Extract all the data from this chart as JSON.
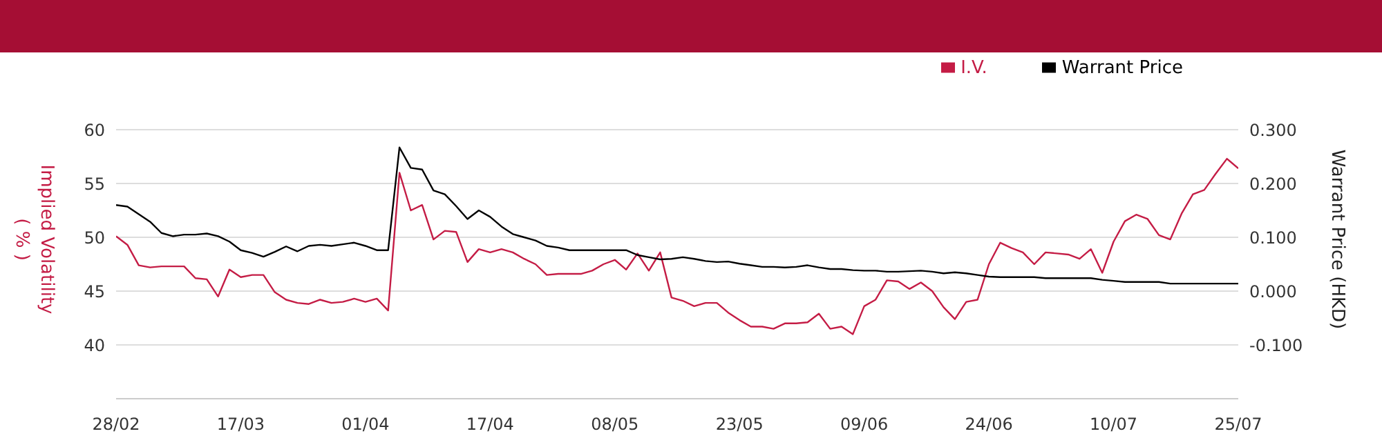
{
  "chart_data": {
    "type": "line",
    "ylabel": "Implied Volatility ( % )",
    "y2label": "Warrant Price (HKD)",
    "categories": [
      "28/02",
      null,
      null,
      null,
      null,
      null,
      null,
      null,
      null,
      null,
      null,
      "17/03",
      null,
      null,
      null,
      null,
      null,
      null,
      null,
      null,
      null,
      null,
      "01/04",
      null,
      null,
      null,
      null,
      null,
      null,
      null,
      null,
      null,
      null,
      "17/04",
      null,
      null,
      null,
      null,
      null,
      null,
      null,
      null,
      null,
      null,
      "08/05",
      null,
      null,
      null,
      null,
      null,
      null,
      null,
      null,
      null,
      null,
      "23/05",
      null,
      null,
      null,
      null,
      null,
      null,
      null,
      null,
      null,
      null,
      "09/06",
      null,
      null,
      null,
      null,
      null,
      null,
      null,
      null,
      null,
      null,
      "24/06",
      null,
      null,
      null,
      null,
      null,
      null,
      null,
      null,
      null,
      null,
      "10/07",
      null,
      null,
      null,
      null,
      null,
      null,
      null,
      null,
      null,
      null,
      "25/07"
    ],
    "series": [
      {
        "name": "I.V.",
        "color": "#c41c45",
        "values": [
          50.1,
          49.3,
          47.4,
          47.2,
          47.3,
          47.3,
          47.3,
          46.2,
          46.1,
          44.5,
          47.0,
          46.3,
          46.5,
          46.5,
          44.9,
          44.2,
          43.9,
          43.8,
          44.2,
          43.9,
          44.0,
          44.3,
          44.0,
          44.3,
          43.2,
          56.0,
          52.5,
          53.0,
          49.8,
          50.6,
          50.5,
          47.7,
          48.9,
          48.6,
          48.9,
          48.6,
          48.0,
          47.5,
          46.5,
          46.6,
          46.6,
          46.6,
          46.9,
          47.5,
          47.9,
          47.0,
          48.5,
          46.9,
          48.6,
          44.4,
          44.1,
          43.6,
          43.9,
          43.9,
          43.0,
          42.3,
          41.7,
          41.7,
          41.5,
          42.0,
          42.0,
          42.1,
          42.9,
          41.5,
          41.7,
          41.0,
          43.6,
          44.2,
          46.0,
          45.9,
          45.2,
          45.8,
          45.0,
          43.5,
          42.4,
          44.0,
          44.2,
          47.5,
          49.5,
          49.0,
          48.6,
          47.5,
          48.6,
          48.5,
          48.4,
          48.0,
          48.9,
          46.7,
          49.6,
          51.5,
          52.1,
          51.7,
          50.2,
          49.8,
          52.2,
          54.0,
          54.4,
          55.9,
          57.3,
          56.4
        ]
      },
      {
        "name": "Warrant Price",
        "color": "#000000",
        "axis": "y2",
        "values": [
          0.16,
          0.157,
          0.143,
          0.129,
          0.108,
          0.102,
          0.105,
          0.105,
          0.107,
          0.102,
          0.092,
          0.076,
          0.071,
          0.064,
          0.073,
          0.083,
          0.074,
          0.084,
          0.086,
          0.084,
          0.087,
          0.09,
          0.084,
          0.076,
          0.076,
          0.267,
          0.229,
          0.226,
          0.187,
          0.18,
          0.158,
          0.134,
          0.15,
          0.138,
          0.12,
          0.106,
          0.1,
          0.094,
          0.084,
          0.081,
          0.076,
          0.076,
          0.076,
          0.076,
          0.076,
          0.076,
          0.067,
          0.063,
          0.059,
          0.06,
          0.063,
          0.06,
          0.056,
          0.054,
          0.055,
          0.051,
          0.048,
          0.045,
          0.045,
          0.044,
          0.045,
          0.048,
          0.044,
          0.041,
          0.041,
          0.039,
          0.038,
          0.038,
          0.036,
          0.036,
          0.037,
          0.038,
          0.036,
          0.033,
          0.035,
          0.033,
          0.03,
          0.027,
          0.026,
          0.026,
          0.026,
          0.026,
          0.024,
          0.024,
          0.024,
          0.024,
          0.024,
          0.021,
          0.019,
          0.017,
          0.017,
          0.017,
          0.017,
          0.014,
          0.014,
          0.014,
          0.014,
          0.014,
          0.014,
          0.014
        ]
      }
    ],
    "ylim": [
      35,
      60
    ],
    "yticks": [
      40,
      45,
      50,
      55,
      60
    ],
    "y2lim": [
      -0.2,
      0.3
    ],
    "y2ticks": [
      {
        "value": -0.1,
        "label": "-0.100"
      },
      {
        "value": 0,
        "label": "0.000"
      },
      {
        "value": 0.1,
        "label": "0.100"
      },
      {
        "value": 0.2,
        "label": "0.200"
      },
      {
        "value": 0.3,
        "label": "0.300"
      }
    ],
    "grid": "y",
    "legend": "top right",
    "marker": "none",
    "line_style": "solid"
  }
}
